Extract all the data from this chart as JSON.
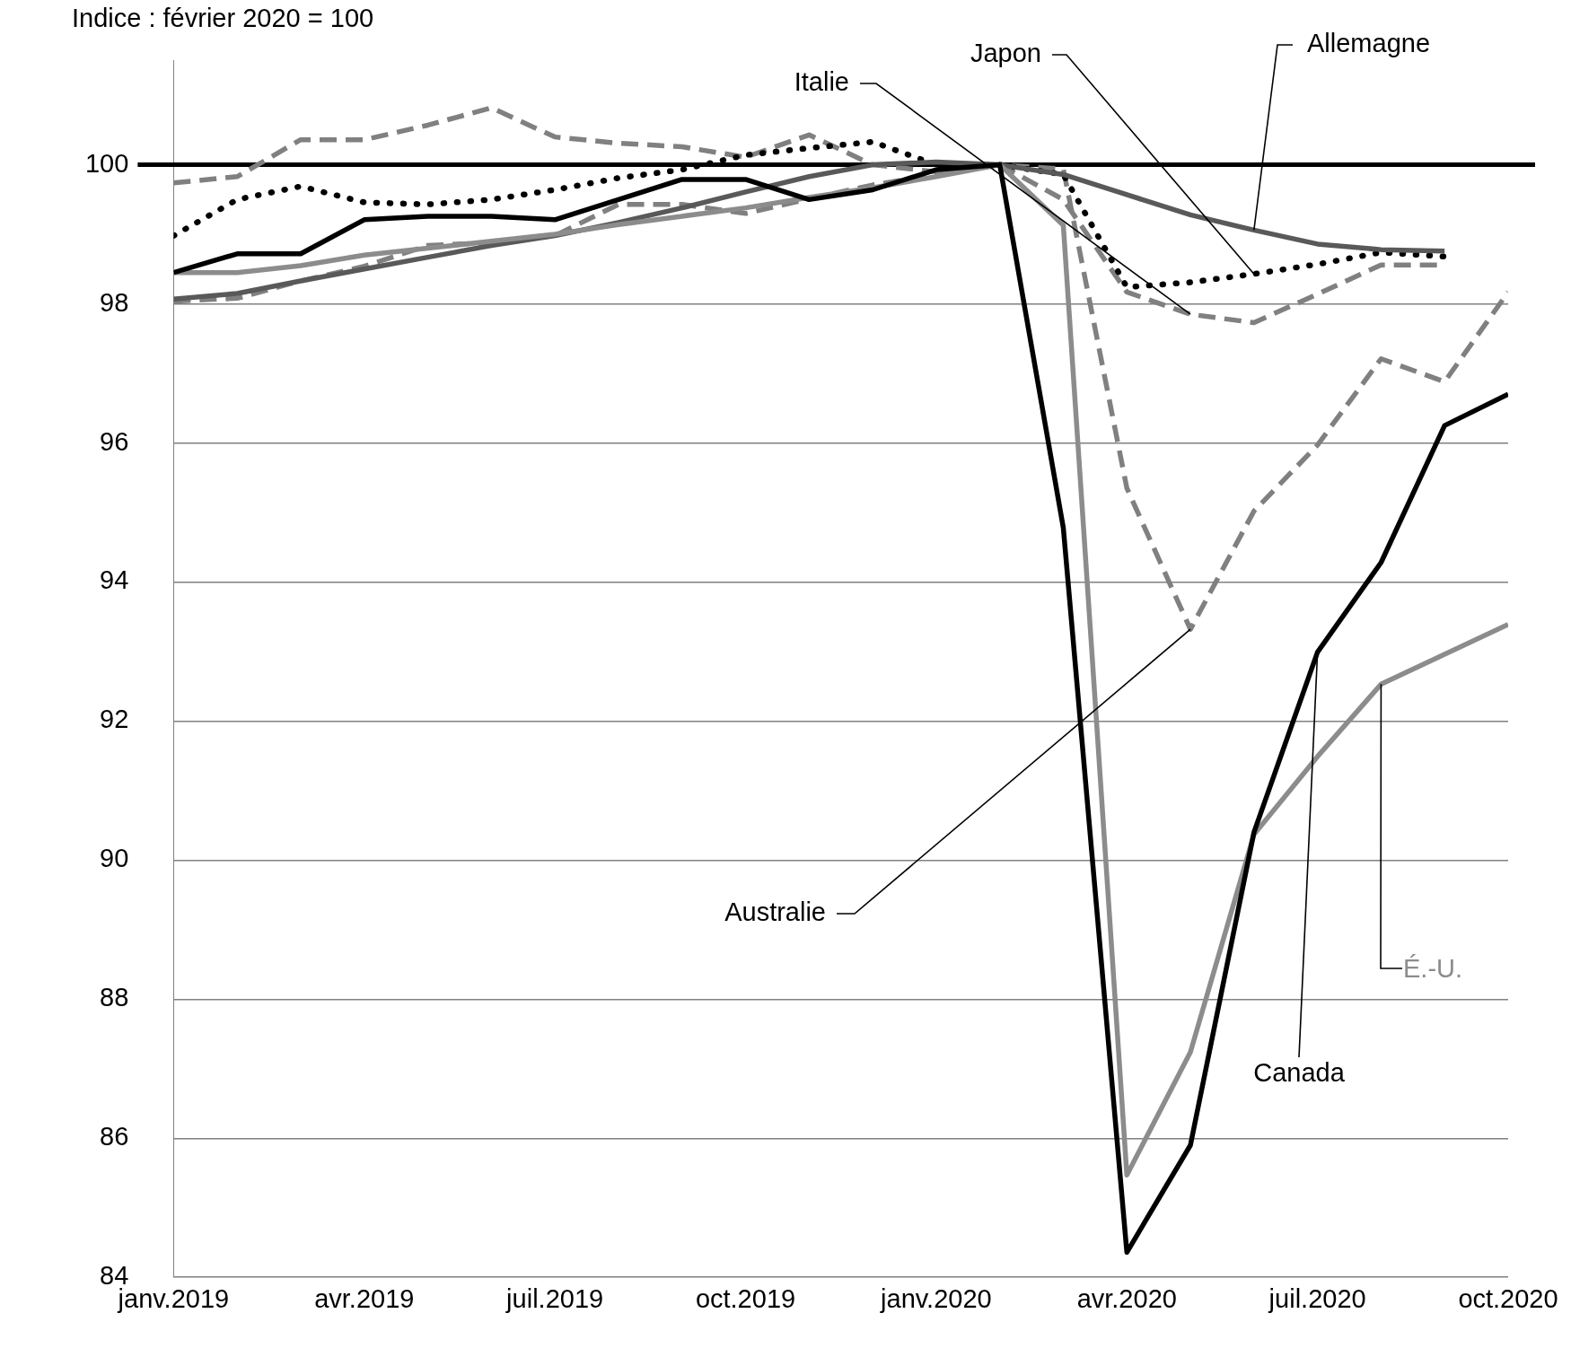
{
  "chart_data": {
    "type": "line",
    "ylabel": "Indice : février 2020 = 100",
    "x": [
      "2019-01",
      "2019-02",
      "2019-03",
      "2019-04",
      "2019-05",
      "2019-06",
      "2019-07",
      "2019-08",
      "2019-09",
      "2019-10",
      "2019-11",
      "2019-12",
      "2020-01",
      "2020-02",
      "2020-03",
      "2020-04",
      "2020-05",
      "2020-06",
      "2020-07",
      "2020-08",
      "2020-09",
      "2020-10"
    ],
    "xlim": [
      "2019-01",
      "2020-10"
    ],
    "xticks": [
      {
        "value": "2019-01",
        "label": "janv.2019"
      },
      {
        "value": "2019-04",
        "label": "avr.2019"
      },
      {
        "value": "2019-07",
        "label": "juil.2019"
      },
      {
        "value": "2019-10",
        "label": "oct.2019"
      },
      {
        "value": "2020-01",
        "label": "janv.2020"
      },
      {
        "value": "2020-04",
        "label": "avr.2020"
      },
      {
        "value": "2020-07",
        "label": "juil.2020"
      },
      {
        "value": "2020-10",
        "label": "oct.2020"
      }
    ],
    "ylim": [
      84,
      101.5
    ],
    "yticks": [
      84,
      86,
      88,
      90,
      92,
      94,
      96,
      98,
      100
    ],
    "grid": "y",
    "legend": false,
    "ref_lines": [
      {
        "axis": "y",
        "value": 100,
        "color": "#000000"
      }
    ],
    "series": [
      {
        "name": "Canada",
        "color": "#000000",
        "line_style": "solid",
        "values": [
          98.45,
          98.72,
          98.72,
          99.21,
          99.26,
          99.26,
          99.21,
          99.5,
          99.79,
          99.79,
          99.5,
          99.64,
          99.93,
          100,
          94.78,
          84.36,
          85.9,
          90.4,
          92.99,
          94.28,
          96.25,
          96.7
        ]
      },
      {
        "name": "É.-U.",
        "color": "#8c8c8c",
        "line_style": "solid",
        "values": [
          98.45,
          98.45,
          98.55,
          98.7,
          98.8,
          98.9,
          99.0,
          99.14,
          99.26,
          99.38,
          99.53,
          99.67,
          99.83,
          100,
          99.13,
          85.47,
          87.24,
          90.37,
          91.49,
          92.53,
          92.96,
          93.39
        ]
      },
      {
        "name": "Allemagne",
        "color": "#595959",
        "line_style": "solid",
        "values": [
          98.07,
          98.15,
          98.33,
          98.5,
          98.67,
          98.84,
          98.98,
          99.17,
          99.38,
          99.61,
          99.83,
          100,
          100.04,
          100,
          99.86,
          99.57,
          99.28,
          99.06,
          98.86,
          98.78,
          98.76,
          null
        ]
      },
      {
        "name": "Japon",
        "color": "#000000",
        "line_style": "dotted",
        "values": [
          98.98,
          99.5,
          99.69,
          99.46,
          99.43,
          99.5,
          99.64,
          99.81,
          99.93,
          100.14,
          100.24,
          100.33,
          100,
          100,
          99.86,
          98.24,
          98.31,
          98.43,
          98.57,
          98.74,
          98.68,
          null
        ]
      },
      {
        "name": "Italie",
        "color": "#808080",
        "line_style": "dashed",
        "values": [
          99.74,
          99.83,
          100.36,
          100.36,
          100.57,
          100.82,
          100.4,
          100.31,
          100.26,
          100.11,
          100.43,
          100,
          99.9,
          100,
          99.5,
          98.17,
          97.85,
          97.73,
          98.14,
          98.56,
          98.56,
          null
        ]
      },
      {
        "name": "Australie",
        "color": "#808080",
        "line_style": "dashed",
        "values": [
          98.04,
          98.08,
          98.33,
          98.54,
          98.84,
          98.88,
          98.98,
          99.43,
          99.43,
          99.3,
          99.51,
          99.71,
          99.86,
          100,
          99.94,
          95.35,
          93.32,
          95.02,
          95.97,
          97.21,
          96.88,
          98.17
        ]
      }
    ]
  }
}
